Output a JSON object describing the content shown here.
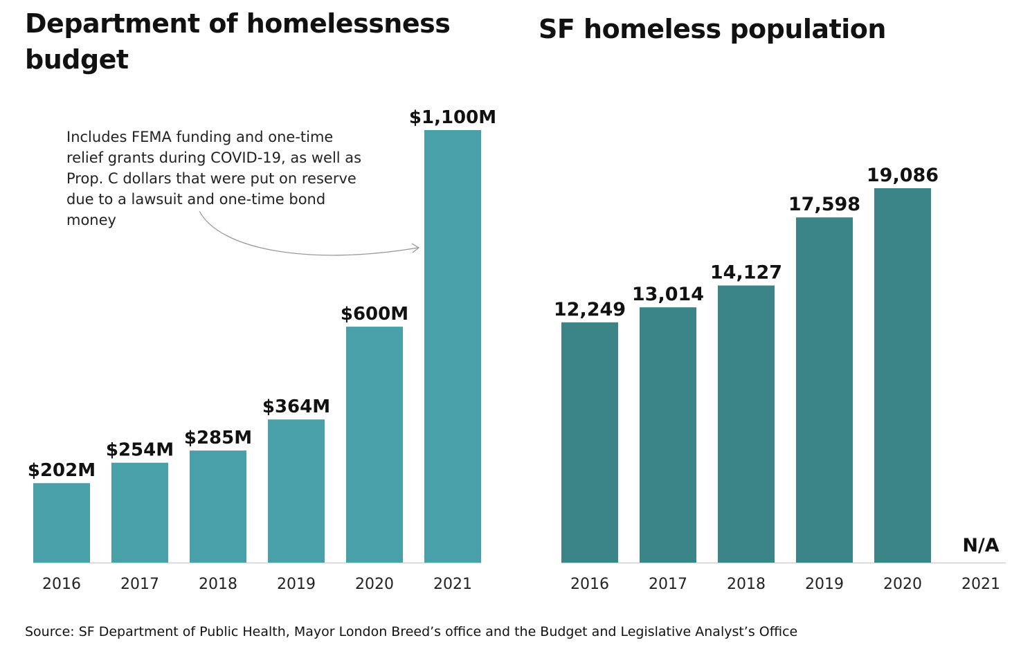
{
  "chart_data": [
    {
      "type": "bar",
      "title": "Department of homelessness budget",
      "categories": [
        "2016",
        "2017",
        "2018",
        "2019",
        "2020",
        "2021"
      ],
      "values": [
        202,
        254,
        285,
        364,
        600,
        1100
      ],
      "value_labels": [
        "$202M",
        "$254M",
        "$285M",
        "$364M",
        "$600M",
        "$1,100M"
      ],
      "units": "millions of dollars",
      "ylim": [
        0,
        1100
      ],
      "color": "#4aa0a9",
      "xlabel": "",
      "ylabel": "",
      "annotation": {
        "text": "Includes FEMA funding and one-time relief grants during COVID-19, as well as Prop. C dollars that were put on reserve due to a lawsuit and one-time bond money",
        "target_category": "2021"
      }
    },
    {
      "type": "bar",
      "title": "SF homeless population",
      "categories": [
        "2016",
        "2017",
        "2018",
        "2019",
        "2020",
        "2021"
      ],
      "values": [
        12249,
        13014,
        14127,
        17598,
        19086,
        null
      ],
      "value_labels": [
        "12,249",
        "13,014",
        "14,127",
        "17,598",
        "19,086",
        "N/A"
      ],
      "ylim": [
        0,
        19086
      ],
      "color": "#3b8588",
      "xlabel": "",
      "ylabel": ""
    }
  ],
  "source": "Source: SF Department of Public Health, Mayor London Breed’s office and the Budget and Legislative Analyst’s Office"
}
